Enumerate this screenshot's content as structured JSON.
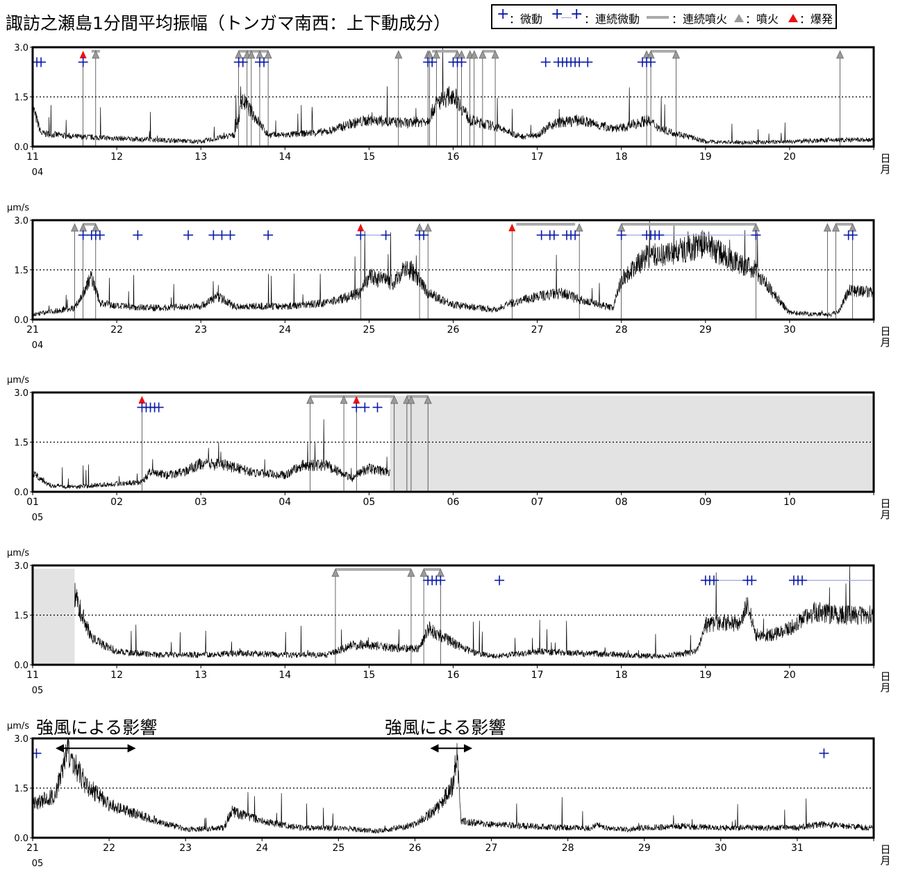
{
  "title": "諏訪之瀬島1分間平均振幅（トンガマ南西：上下動成分）",
  "legend": {
    "tremor": "：微動",
    "continuous_tremor": "：連続微動",
    "continuous_eruption": "：連続噴火",
    "eruption": "：噴火",
    "explosion": "：爆発"
  },
  "colors": {
    "tremor": "#0a1aa8",
    "gray": "#aaaaaa",
    "explosion": "#ee1111",
    "nodata": "#e3e3e3"
  },
  "unit_label": "μm/s",
  "month_suffix": "月",
  "wind_label": "強風による影響",
  "chart_data": [
    {
      "type": "line",
      "month": "04",
      "x_ticks": [
        "11",
        "12",
        "13",
        "14",
        "15",
        "16",
        "17",
        "18",
        "19",
        "20"
      ],
      "x_range": [
        11,
        21
      ],
      "y_ticks": [
        "0.0",
        "1.5",
        "3.0"
      ],
      "ylim": [
        0,
        3.0
      ],
      "show_unit": false,
      "baseline": [
        [
          11.0,
          1.2
        ],
        [
          11.1,
          0.4
        ],
        [
          11.5,
          0.3
        ],
        [
          12.0,
          0.25
        ],
        [
          12.5,
          0.2
        ],
        [
          13.0,
          0.15
        ],
        [
          13.4,
          0.35
        ],
        [
          13.5,
          1.4
        ],
        [
          13.7,
          0.7
        ],
        [
          13.8,
          0.35
        ],
        [
          14.0,
          0.35
        ],
        [
          14.5,
          0.45
        ],
        [
          14.8,
          0.7
        ],
        [
          15.0,
          0.8
        ],
        [
          15.5,
          0.7
        ],
        [
          15.7,
          0.8
        ],
        [
          15.8,
          1.3
        ],
        [
          16.0,
          1.6
        ],
        [
          16.2,
          0.8
        ],
        [
          16.5,
          0.6
        ],
        [
          16.8,
          0.3
        ],
        [
          17.0,
          0.35
        ],
        [
          17.2,
          0.7
        ],
        [
          17.5,
          0.8
        ],
        [
          17.8,
          0.6
        ],
        [
          18.0,
          0.55
        ],
        [
          18.3,
          0.8
        ],
        [
          18.5,
          0.5
        ],
        [
          18.8,
          0.3
        ],
        [
          19.0,
          0.15
        ],
        [
          19.5,
          0.12
        ],
        [
          20.0,
          0.15
        ],
        [
          20.5,
          0.2
        ],
        [
          21.0,
          0.2
        ]
      ],
      "tremor": [
        11.05,
        11.1,
        11.6,
        13.45,
        13.5,
        13.7,
        13.75,
        15.7,
        15.75,
        16.0,
        16.05,
        16.1,
        17.1,
        17.25,
        17.3,
        17.35,
        17.4,
        17.45,
        17.5,
        17.6,
        18.25,
        18.3,
        18.35
      ],
      "eruption": [
        11.75,
        13.45,
        13.55,
        13.6,
        13.7,
        13.8,
        15.35,
        15.7,
        15.72,
        15.8,
        16.05,
        16.1,
        16.2,
        16.25,
        16.35,
        16.5,
        18.3,
        18.35,
        18.65,
        20.6
      ],
      "explosion": [
        11.6
      ],
      "continuous_eruption": [
        [
          11.7,
          11.8
        ],
        [
          13.45,
          13.8
        ],
        [
          15.75,
          16.05
        ],
        [
          16.35,
          16.5
        ],
        [
          18.35,
          18.65
        ]
      ],
      "continuous_tremor": [],
      "nodata": []
    },
    {
      "type": "line",
      "month": "04",
      "x_ticks": [
        "21",
        "22",
        "23",
        "24",
        "25",
        "26",
        "27",
        "28",
        "29",
        "30"
      ],
      "x_range": [
        21,
        31
      ],
      "y_ticks": [
        "0.0",
        "1.5",
        "3.0"
      ],
      "ylim": [
        0,
        3.0
      ],
      "show_unit": true,
      "baseline": [
        [
          21.0,
          0.15
        ],
        [
          21.5,
          0.35
        ],
        [
          21.6,
          0.8
        ],
        [
          21.7,
          1.3
        ],
        [
          21.8,
          0.5
        ],
        [
          22.0,
          0.4
        ],
        [
          22.5,
          0.35
        ],
        [
          23.0,
          0.4
        ],
        [
          23.2,
          0.7
        ],
        [
          23.4,
          0.4
        ],
        [
          24.0,
          0.4
        ],
        [
          24.5,
          0.5
        ],
        [
          24.9,
          0.8
        ],
        [
          25.0,
          1.3
        ],
        [
          25.3,
          1.1
        ],
        [
          25.4,
          1.5
        ],
        [
          25.5,
          1.5
        ],
        [
          25.7,
          0.8
        ],
        [
          26.0,
          0.45
        ],
        [
          26.5,
          0.3
        ],
        [
          26.7,
          0.5
        ],
        [
          27.0,
          0.7
        ],
        [
          27.3,
          0.8
        ],
        [
          27.5,
          0.6
        ],
        [
          27.9,
          0.35
        ],
        [
          28.0,
          1.2
        ],
        [
          28.3,
          1.9
        ],
        [
          28.6,
          2.0
        ],
        [
          29.0,
          2.3
        ],
        [
          29.3,
          1.8
        ],
        [
          29.6,
          1.5
        ],
        [
          29.8,
          0.8
        ],
        [
          30.0,
          0.2
        ],
        [
          30.5,
          0.15
        ],
        [
          30.6,
          0.3
        ],
        [
          30.7,
          0.9
        ],
        [
          31.0,
          0.8
        ]
      ],
      "tremor": [
        21.6,
        21.7,
        21.75,
        21.8,
        22.25,
        22.85,
        23.15,
        23.25,
        23.35,
        23.8,
        24.9,
        25.2,
        25.6,
        25.65,
        27.05,
        27.15,
        27.2,
        27.35,
        27.4,
        27.45,
        28.0,
        28.3,
        28.35,
        28.4,
        28.45,
        29.6,
        30.7,
        30.75
      ],
      "eruption": [
        21.5,
        21.6,
        21.75,
        25.6,
        25.7,
        27.5,
        28.0,
        29.6,
        30.45,
        30.55,
        30.75
      ],
      "explosion": [
        24.9,
        26.7
      ],
      "continuous_eruption": [
        [
          21.6,
          21.75
        ],
        [
          26.75,
          27.45
        ],
        [
          28.0,
          29.6
        ],
        [
          30.55,
          30.75
        ]
      ],
      "continuous_tremor": [
        [
          24.9,
          25.2
        ],
        [
          28.0,
          29.6
        ]
      ],
      "nodata": []
    },
    {
      "type": "line",
      "month": "05",
      "x_ticks": [
        "01",
        "02",
        "03",
        "04",
        "05",
        "06",
        "07",
        "08",
        "09",
        "10"
      ],
      "x_range": [
        1,
        11
      ],
      "y_ticks": [
        "0.0",
        "1.5",
        "3.0"
      ],
      "ylim": [
        0,
        3.0
      ],
      "show_unit": true,
      "baseline": [
        [
          1.0,
          0.6
        ],
        [
          1.2,
          0.2
        ],
        [
          1.5,
          0.15
        ],
        [
          2.0,
          0.25
        ],
        [
          2.3,
          0.3
        ],
        [
          2.4,
          0.6
        ],
        [
          2.6,
          0.5
        ],
        [
          2.8,
          0.6
        ],
        [
          3.0,
          0.85
        ],
        [
          3.3,
          0.8
        ],
        [
          3.6,
          0.6
        ],
        [
          4.0,
          0.5
        ],
        [
          4.2,
          0.8
        ],
        [
          4.5,
          0.8
        ],
        [
          4.8,
          0.4
        ],
        [
          4.9,
          0.6
        ],
        [
          5.0,
          0.7
        ],
        [
          5.2,
          0.6
        ],
        [
          5.25,
          0.6
        ]
      ],
      "tremor": [
        2.3,
        2.35,
        2.4,
        2.45,
        2.5,
        4.85,
        4.95,
        5.1
      ],
      "eruption": [
        4.3,
        4.7,
        5.3,
        5.45,
        5.5,
        5.7
      ],
      "explosion": [
        2.3,
        4.85
      ],
      "continuous_eruption": [
        [
          4.3,
          4.85
        ],
        [
          4.85,
          5.3
        ],
        [
          5.45,
          5.7
        ]
      ],
      "continuous_tremor": [],
      "nodata": [
        [
          5.25,
          11.0
        ]
      ]
    },
    {
      "type": "line",
      "month": "05",
      "x_ticks": [
        "11",
        "12",
        "13",
        "14",
        "15",
        "16",
        "17",
        "18",
        "19",
        "20"
      ],
      "x_range": [
        11,
        21
      ],
      "y_ticks": [
        "0.0",
        "1.5",
        "3.0"
      ],
      "ylim": [
        0,
        3.0
      ],
      "show_unit": true,
      "baseline": [
        [
          11.5,
          2.1
        ],
        [
          11.7,
          0.8
        ],
        [
          12.0,
          0.4
        ],
        [
          12.5,
          0.3
        ],
        [
          13.0,
          0.3
        ],
        [
          13.5,
          0.35
        ],
        [
          14.0,
          0.3
        ],
        [
          14.5,
          0.3
        ],
        [
          14.8,
          0.6
        ],
        [
          15.0,
          0.6
        ],
        [
          15.3,
          0.5
        ],
        [
          15.6,
          0.5
        ],
        [
          15.7,
          1.1
        ],
        [
          15.9,
          0.8
        ],
        [
          16.2,
          0.4
        ],
        [
          16.5,
          0.25
        ],
        [
          17.0,
          0.4
        ],
        [
          17.5,
          0.35
        ],
        [
          18.0,
          0.3
        ],
        [
          18.5,
          0.25
        ],
        [
          18.9,
          0.4
        ],
        [
          19.0,
          1.2
        ],
        [
          19.2,
          1.3
        ],
        [
          19.4,
          1.2
        ],
        [
          19.5,
          1.8
        ],
        [
          19.6,
          0.9
        ],
        [
          19.8,
          0.9
        ],
        [
          20.0,
          1.1
        ],
        [
          20.3,
          1.6
        ],
        [
          20.6,
          1.5
        ],
        [
          21.0,
          1.5
        ]
      ],
      "tremor": [
        15.7,
        15.75,
        15.8,
        15.85,
        16.55,
        19.0,
        19.05,
        19.1,
        19.5,
        19.55,
        20.05,
        20.1,
        20.15
      ],
      "eruption": [
        14.6,
        15.5,
        15.65,
        15.85
      ],
      "explosion": [],
      "continuous_eruption": [
        [
          14.6,
          15.5
        ],
        [
          15.65,
          15.85
        ]
      ],
      "continuous_tremor": [
        [
          19.0,
          19.55
        ],
        [
          20.05,
          21.0
        ]
      ],
      "nodata": [
        [
          11.0,
          11.5
        ]
      ]
    },
    {
      "type": "line",
      "month": "05",
      "x_ticks": [
        "21",
        "22",
        "23",
        "24",
        "25",
        "26",
        "27",
        "28",
        "29",
        "30",
        "31"
      ],
      "x_range": [
        21,
        32
      ],
      "y_ticks": [
        "0.0",
        "1.5",
        "3.0"
      ],
      "ylim": [
        0,
        3.0
      ],
      "show_unit": true,
      "baseline": [
        [
          21.0,
          1.0
        ],
        [
          21.3,
          1.3
        ],
        [
          21.45,
          2.6
        ],
        [
          21.7,
          1.6
        ],
        [
          22.0,
          1.0
        ],
        [
          22.5,
          0.6
        ],
        [
          23.0,
          0.25
        ],
        [
          23.5,
          0.3
        ],
        [
          23.6,
          0.8
        ],
        [
          24.0,
          0.5
        ],
        [
          24.5,
          0.3
        ],
        [
          25.0,
          0.3
        ],
        [
          25.5,
          0.2
        ],
        [
          25.8,
          0.3
        ],
        [
          26.0,
          0.4
        ],
        [
          26.3,
          0.9
        ],
        [
          26.5,
          1.6
        ],
        [
          26.55,
          2.6
        ],
        [
          26.6,
          0.5
        ],
        [
          27.0,
          0.4
        ],
        [
          27.5,
          0.35
        ],
        [
          28.0,
          0.3
        ],
        [
          28.3,
          0.3
        ],
        [
          28.4,
          0.4
        ],
        [
          28.5,
          0.3
        ],
        [
          28.8,
          0.25
        ],
        [
          29.0,
          0.3
        ],
        [
          29.5,
          0.35
        ],
        [
          30.0,
          0.3
        ],
        [
          30.5,
          0.3
        ],
        [
          31.0,
          0.3
        ],
        [
          31.3,
          0.4
        ],
        [
          31.6,
          0.35
        ],
        [
          32.0,
          0.3
        ]
      ],
      "tremor": [
        21.05,
        31.35
      ],
      "eruption": [],
      "explosion": [],
      "continuous_eruption": [],
      "continuous_tremor": [],
      "nodata": [],
      "wind_arrows": [
        [
          21.3,
          22.35
        ],
        [
          26.2,
          26.75
        ]
      ]
    }
  ]
}
